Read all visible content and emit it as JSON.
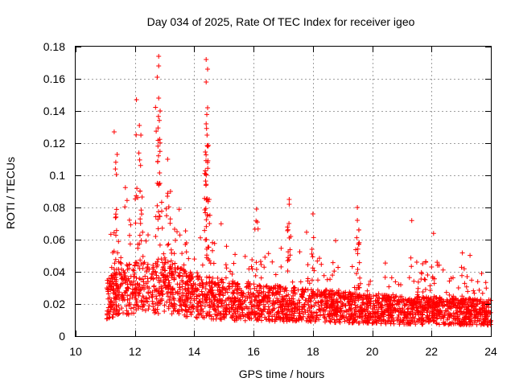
{
  "chart_data": {
    "type": "scatter",
    "title": "Day 034 of 2025, Rate Of TEC Index for receiver igeo",
    "xlabel": "GPS time / hours",
    "ylabel": "ROTI / TECUs",
    "xlim": [
      10,
      24
    ],
    "ylim": [
      0,
      0.18
    ],
    "x_ticks": [
      10,
      12,
      14,
      16,
      18,
      20,
      22,
      24
    ],
    "y_ticks": [
      "0",
      "0.02",
      "0.04",
      "0.06",
      "0.08",
      "0.1",
      "0.12",
      "0.14",
      "0.16",
      "0.18"
    ],
    "grid": true,
    "marker": "+",
    "color": "#ff0000",
    "series": [
      {
        "name": "ROTI",
        "x_start": 11.05,
        "x_end": 24.0,
        "baseline_profile": [
          [
            11.0,
            0.022
          ],
          [
            11.5,
            0.028
          ],
          [
            12.0,
            0.03
          ],
          [
            12.5,
            0.03
          ],
          [
            13.0,
            0.032
          ],
          [
            13.5,
            0.028
          ],
          [
            14.0,
            0.025
          ],
          [
            14.5,
            0.024
          ],
          [
            15.0,
            0.022
          ],
          [
            16.0,
            0.021
          ],
          [
            17.0,
            0.02
          ],
          [
            18.0,
            0.019
          ],
          [
            19.0,
            0.018
          ],
          [
            20.0,
            0.017
          ],
          [
            21.0,
            0.016
          ],
          [
            22.0,
            0.016
          ],
          [
            23.0,
            0.015
          ],
          [
            24.0,
            0.015
          ]
        ],
        "peaks": [
          {
            "x": 11.3,
            "y": 0.127
          },
          {
            "x": 11.4,
            "y": 0.113
          },
          {
            "x": 12.05,
            "y": 0.147
          },
          {
            "x": 12.15,
            "y": 0.131
          },
          {
            "x": 12.2,
            "y": 0.125
          },
          {
            "x": 12.8,
            "y": 0.174
          },
          {
            "x": 12.8,
            "y": 0.168
          },
          {
            "x": 12.75,
            "y": 0.161
          },
          {
            "x": 12.8,
            "y": 0.148
          },
          {
            "x": 12.85,
            "y": 0.14
          },
          {
            "x": 13.1,
            "y": 0.11
          },
          {
            "x": 13.2,
            "y": 0.09
          },
          {
            "x": 14.4,
            "y": 0.172
          },
          {
            "x": 14.45,
            "y": 0.166
          },
          {
            "x": 14.4,
            "y": 0.158
          },
          {
            "x": 14.45,
            "y": 0.142
          },
          {
            "x": 14.4,
            "y": 0.132
          },
          {
            "x": 14.45,
            "y": 0.108
          },
          {
            "x": 14.5,
            "y": 0.085
          },
          {
            "x": 16.1,
            "y": 0.079
          },
          {
            "x": 17.2,
            "y": 0.085
          },
          {
            "x": 17.2,
            "y": 0.082
          },
          {
            "x": 18.0,
            "y": 0.076
          },
          {
            "x": 19.5,
            "y": 0.08
          },
          {
            "x": 19.5,
            "y": 0.072
          },
          {
            "x": 19.55,
            "y": 0.066
          },
          {
            "x": 21.5,
            "y": 0.046
          },
          {
            "x": 21.7,
            "y": 0.045
          },
          {
            "x": 22.0,
            "y": 0.043
          },
          {
            "x": 23.2,
            "y": 0.037
          }
        ]
      }
    ]
  }
}
